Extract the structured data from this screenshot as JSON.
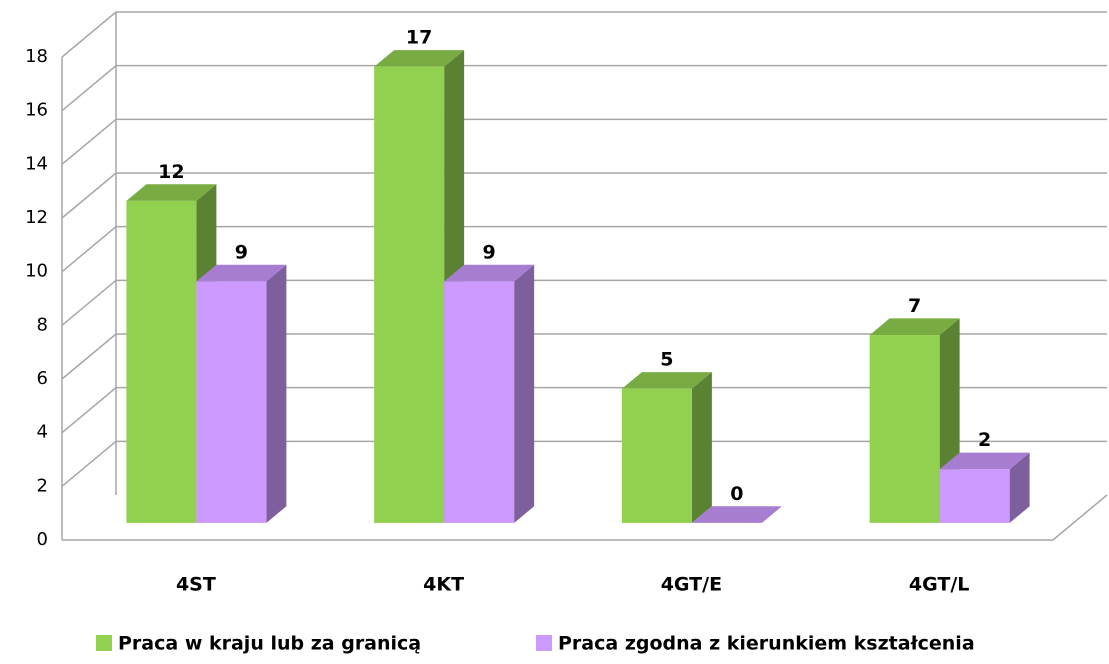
{
  "chart_data": {
    "type": "bar3d",
    "categories": [
      "4ST",
      "4KT",
      "4GT/E",
      "4GT/L"
    ],
    "series": [
      {
        "name": "Praca w kraju lub za granicą",
        "color": "#92d050",
        "values": [
          12,
          17,
          5,
          7
        ]
      },
      {
        "name": "Praca zgodna z kierunkiem kształcenia",
        "color": "#cc99ff",
        "values": [
          9,
          9,
          0,
          2
        ]
      }
    ],
    "ylim": [
      0,
      18
    ],
    "yticks": [
      0,
      2,
      4,
      6,
      8,
      10,
      12,
      14,
      16,
      18
    ],
    "grid": true,
    "legend": "bottom"
  }
}
